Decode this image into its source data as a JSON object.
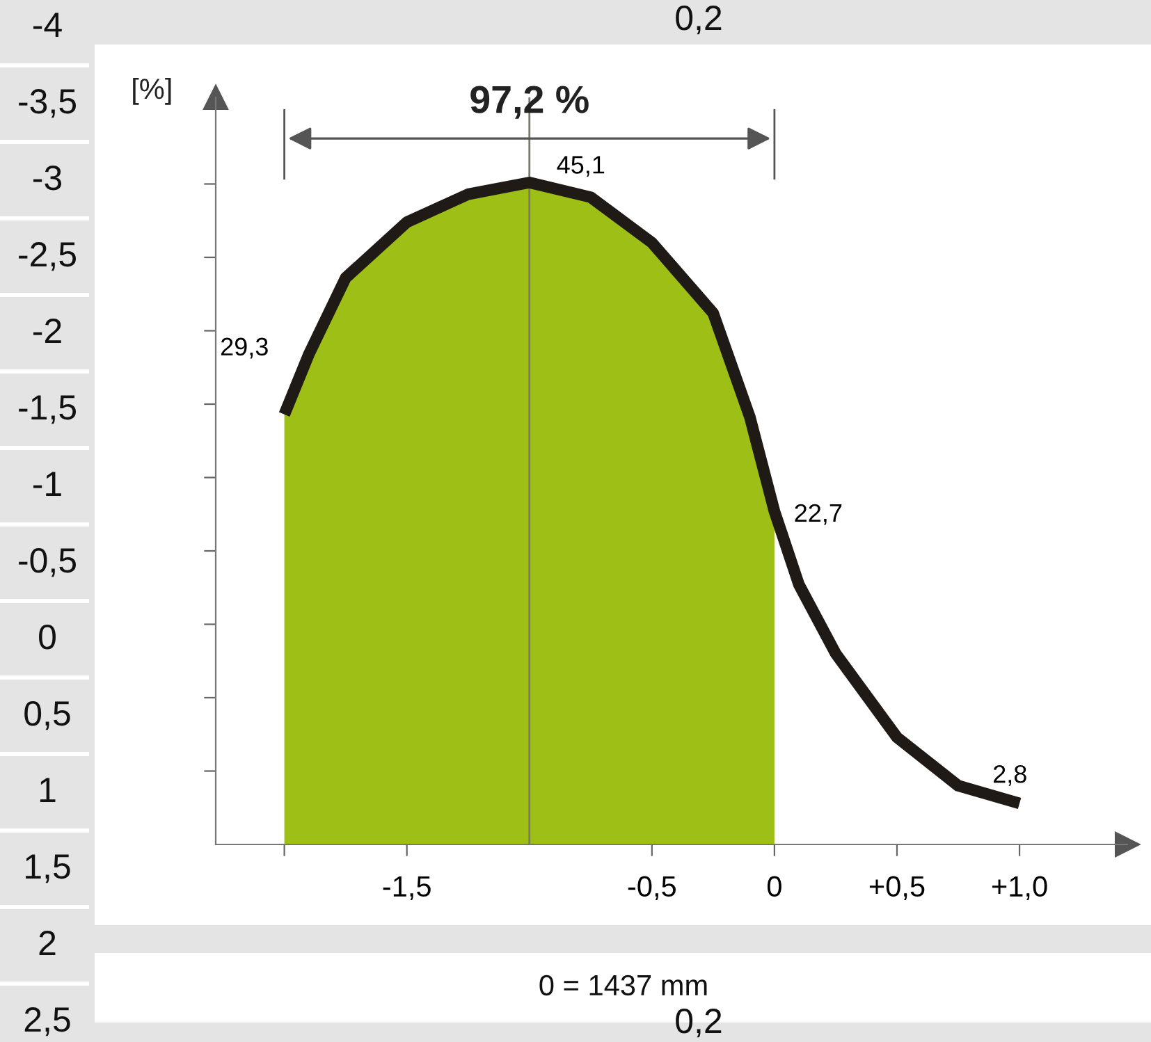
{
  "chart_data": {
    "type": "line",
    "ylabel": "[%]",
    "xlim": [
      -2.28,
      1.44
    ],
    "ylim": [
      0,
      50.9
    ],
    "xticks": [
      {
        "value": -2,
        "label": null
      },
      {
        "value": -1.5,
        "label": "-1,5"
      },
      {
        "value": -0.5,
        "label": "-0,5"
      },
      {
        "value": 0,
        "label": "0"
      },
      {
        "value": 0.5,
        "label": "+0,5"
      },
      {
        "value": 1,
        "label": "+1,0"
      }
    ],
    "yticks": [
      {
        "value": 5,
        "label": null
      },
      {
        "value": 10,
        "label": null
      },
      {
        "value": 15,
        "label": null
      },
      {
        "value": 20,
        "label": null
      },
      {
        "value": 25,
        "label": null
      },
      {
        "value": 30,
        "label": null
      },
      {
        "value": 35,
        "label": null
      },
      {
        "value": 40,
        "label": null
      },
      {
        "value": 45,
        "label": null
      }
    ],
    "grid": false,
    "marker": "none",
    "line_style": "solid",
    "ref_lines": [
      {
        "axis": "x",
        "value": -1,
        "color": "#7a7a6a"
      }
    ],
    "series": [
      {
        "type": "area",
        "color": "#9dbf16",
        "x": [
          -2,
          -1.9,
          -1.75,
          -1.5,
          -1.25,
          -1,
          -0.75,
          -0.5,
          -0.25,
          -0.1,
          0
        ],
        "values": [
          29.3,
          33.4,
          38.6,
          42.4,
          44.3,
          45.1,
          44.1,
          41,
          36.2,
          29.1,
          22.7
        ]
      },
      {
        "color": "#201a17",
        "x": [
          -2,
          -1.9,
          -1.75,
          -1.5,
          -1.25,
          -1,
          -0.75,
          -0.5,
          -0.25,
          -0.1,
          0,
          0.1,
          0.25,
          0.5,
          0.75,
          1
        ],
        "values": [
          29.3,
          33.4,
          38.6,
          42.4,
          44.3,
          45.1,
          44.1,
          41,
          36.2,
          29.1,
          22.7,
          17.7,
          13,
          7.3,
          4.0,
          2.8
        ],
        "value_labels": [
          "29,3",
          null,
          null,
          null,
          null,
          "45,1",
          null,
          null,
          null,
          null,
          "22,7",
          null,
          null,
          null,
          null,
          "2,8"
        ]
      }
    ],
    "annotations": [
      {
        "text": "97,2 %",
        "x": -1,
        "y": 49.3
      },
      "-4",
      "-3,5",
      "-3",
      "-2,5",
      "-2",
      "-1,5",
      "-1",
      "-0,5",
      "0",
      "0,5",
      "1",
      "1,5",
      "2",
      "2,5",
      "0,2",
      "0,2",
      "0 = 1437 mm"
    ]
  }
}
